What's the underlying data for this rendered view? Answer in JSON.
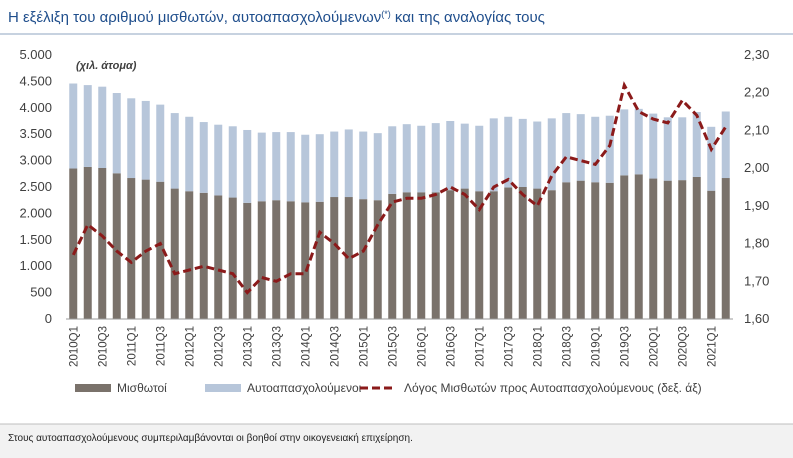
{
  "chart_data": {
    "type": "bar_line",
    "title": [
      "Η εξέλιξη του αριθμού μισθωτών, αυτοαπασχολούμενων",
      "(*)",
      " και της αναλογίας τους"
    ],
    "annotation": "(χιλ. άτομα)",
    "categories": [
      "2010Q1",
      null,
      "2010Q3",
      null,
      "2011Q1",
      null,
      "2011Q3",
      null,
      "2012Q1",
      null,
      "2012Q3",
      null,
      "2013Q1",
      null,
      "2013Q3",
      null,
      "2014Q1",
      null,
      "2014Q3",
      null,
      "2015Q1",
      null,
      "2015Q3",
      null,
      "2016Q1",
      null,
      "2016Q3",
      null,
      "2017Q1",
      null,
      "2017Q3",
      null,
      "2018Q1",
      null,
      "2018Q3",
      null,
      "2019Q1",
      null,
      "2019Q3",
      null,
      "2020Q1",
      null,
      "2020Q3",
      null,
      "2021Q1",
      null
    ],
    "series": [
      {
        "name": "Μισθωτοί",
        "color": "#7a726b",
        "values": [
          2850,
          2880,
          2860,
          2760,
          2670,
          2640,
          2600,
          2470,
          2420,
          2390,
          2340,
          2300,
          2200,
          2230,
          2250,
          2230,
          2210,
          2220,
          2310,
          2310,
          2270,
          2250,
          2370,
          2400,
          2400,
          2400,
          2440,
          2470,
          2420,
          2420,
          2490,
          2500,
          2470,
          2440,
          2590,
          2620,
          2590,
          2580,
          2720,
          2740,
          2660,
          2620,
          2630,
          2690,
          2430,
          2670
        ]
      },
      {
        "name": "Αυτοαπασχολούμενοι",
        "color": "#b7c6da",
        "values": [
          1610,
          1550,
          1540,
          1520,
          1510,
          1490,
          1460,
          1430,
          1410,
          1340,
          1340,
          1350,
          1380,
          1300,
          1290,
          1310,
          1280,
          1280,
          1240,
          1280,
          1280,
          1270,
          1280,
          1290,
          1260,
          1310,
          1310,
          1230,
          1240,
          1380,
          1340,
          1290,
          1270,
          1360,
          1310,
          1260,
          1240,
          1270,
          1250,
          1240,
          1230,
          1200,
          1190,
          1230,
          1210,
          1260
        ]
      },
      {
        "name": "Λόγος Μισθωτών προς Αυτοαπασχολούμενους (δεξ. άξ)",
        "color": "#8b1a1a",
        "axis": "y2",
        "values": [
          1.77,
          1.85,
          1.82,
          1.78,
          1.75,
          1.78,
          1.8,
          1.72,
          1.73,
          1.74,
          1.73,
          1.72,
          1.67,
          1.71,
          1.7,
          1.72,
          1.72,
          1.83,
          1.8,
          1.76,
          1.78,
          1.85,
          1.91,
          1.92,
          1.92,
          1.93,
          1.95,
          1.93,
          1.89,
          1.95,
          1.97,
          1.93,
          1.9,
          1.98,
          2.03,
          2.02,
          2.01,
          2.06,
          2.22,
          2.15,
          2.13,
          2.12,
          2.18,
          2.14,
          2.05,
          2.11
        ]
      }
    ],
    "ylim": [
      0,
      5000
    ],
    "yticks": [
      0,
      {
        "value": 500,
        "label": "500"
      },
      {
        "value": 1000,
        "label": "1.000"
      },
      {
        "value": 1500,
        "label": "1.500"
      },
      {
        "value": 2000,
        "label": "2.000"
      },
      {
        "value": 2500,
        "label": "2.500"
      },
      {
        "value": 3000,
        "label": "3.000"
      },
      {
        "value": 3500,
        "label": "3.500"
      },
      {
        "value": 4000,
        "label": "4.000"
      },
      {
        "value": 4500,
        "label": "4.500"
      },
      {
        "value": 5000,
        "label": "5.000"
      }
    ],
    "y2lim": [
      1.6,
      2.3
    ],
    "y2ticks": [
      {
        "value": 1.6,
        "label": "1,60"
      },
      {
        "value": 1.7,
        "label": "1,70"
      },
      {
        "value": 1.8,
        "label": "1,80"
      },
      {
        "value": 1.9,
        "label": "1,90"
      },
      {
        "value": 2.0,
        "label": "2,00"
      },
      {
        "value": 2.1,
        "label": "2,10"
      },
      {
        "value": 2.2,
        "label": "2,20"
      },
      {
        "value": 2.3,
        "label": "2,30"
      }
    ],
    "footnote": "Στους αυτοαπασχολούμενους συμπεριλαμβάνονται οι βοηθοί στην οικογενειακή επιχείρηση."
  }
}
